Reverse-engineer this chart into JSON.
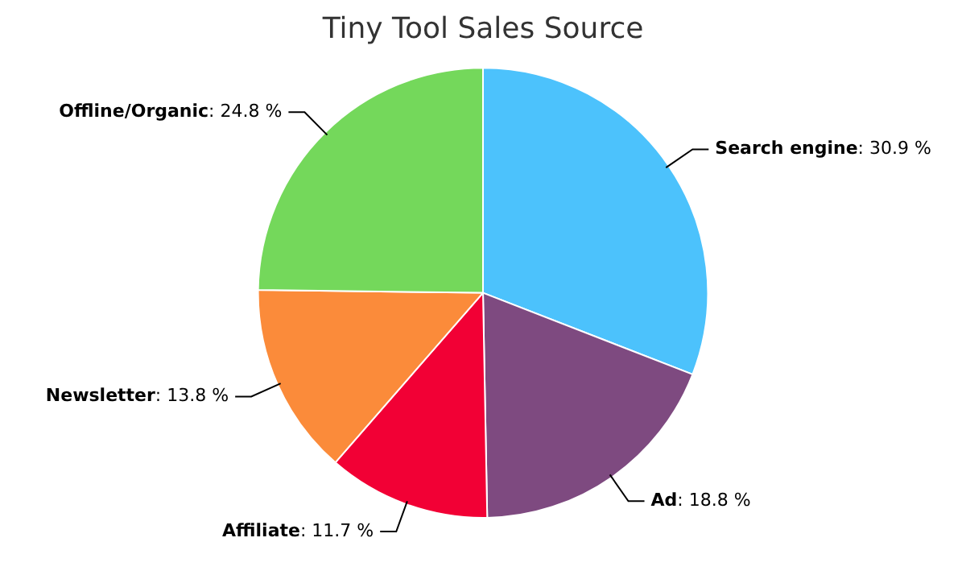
{
  "chart_data": {
    "type": "pie",
    "title": "Tiny Tool Sales Source",
    "categories": [
      "Search engine",
      "Ad",
      "Affiliate",
      "Newsletter",
      "Offline/Organic"
    ],
    "values": [
      30.9,
      18.8,
      11.7,
      13.8,
      24.8
    ],
    "colors": [
      "#4cc2fc",
      "#7e4a80",
      "#f20035",
      "#fb8b3a",
      "#74d85b"
    ],
    "value_labels": [
      ": 30.9 %",
      ": 18.8 %",
      ": 11.7 %",
      ": 13.8 %",
      ": 24.8 %"
    ],
    "legend": false
  }
}
